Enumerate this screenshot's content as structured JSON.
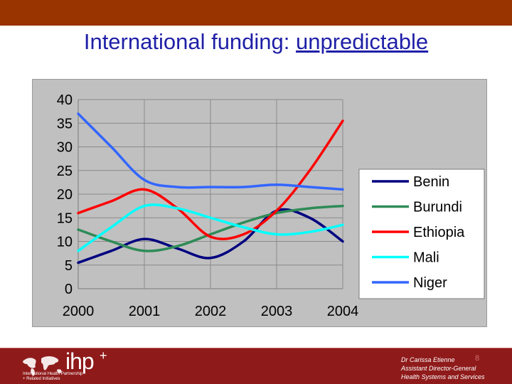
{
  "slide": {
    "title_part1": "International funding: ",
    "title_part2": "unpredictable",
    "page_number": "8"
  },
  "footer": {
    "logo_text": "ihp",
    "logo_plus": "+",
    "logo_caption_line1": "International Health Partnership",
    "logo_caption_line2": "+ Related Initiatives",
    "author": "Dr Carissa Etienne",
    "role": "Assistant Director-General",
    "department": "Health Systems and Services"
  },
  "colors": {
    "top_bar": "#993300",
    "footer_bar": "#8f1a1a",
    "title": "#1f1fa8"
  },
  "chart_data": {
    "type": "line",
    "x": [
      2000,
      2000.5,
      2001,
      2001.5,
      2002,
      2002.5,
      2003,
      2003.5,
      2004
    ],
    "xticks": [
      "2000",
      "2001",
      "2002",
      "2003",
      "2004"
    ],
    "yticks": [
      "0",
      "5",
      "10",
      "15",
      "20",
      "25",
      "30",
      "35",
      "40"
    ],
    "ylim": [
      0,
      40
    ],
    "grid": true,
    "legend_position": "right",
    "series": [
      {
        "name": "Benin",
        "color": "#000080",
        "values": [
          5.5,
          8.0,
          10.5,
          8.5,
          6.5,
          10.0,
          16.5,
          15.0,
          10.0
        ]
      },
      {
        "name": "Burundi",
        "color": "#2e8b57",
        "values": [
          12.5,
          10.0,
          8.0,
          9.0,
          11.5,
          14.0,
          16.0,
          17.0,
          17.5
        ]
      },
      {
        "name": "Ethiopia",
        "color": "#ff0000",
        "values": [
          16.0,
          18.5,
          21.0,
          17.0,
          11.0,
          11.5,
          16.5,
          25.0,
          35.5
        ]
      },
      {
        "name": "Mali",
        "color": "#00ffff",
        "values": [
          8.0,
          13.0,
          17.5,
          17.0,
          15.0,
          13.0,
          11.5,
          12.0,
          13.5
        ]
      },
      {
        "name": "Niger",
        "color": "#3366ff",
        "values": [
          37.0,
          30.0,
          23.0,
          21.5,
          21.5,
          21.5,
          22.0,
          21.5,
          21.0
        ]
      }
    ]
  }
}
